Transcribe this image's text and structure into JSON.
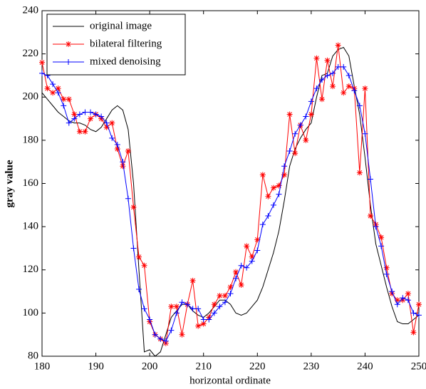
{
  "chart_data": {
    "type": "line",
    "xlabel": "horizontal ordinate",
    "ylabel": "gray value",
    "x": [
      180,
      181,
      182,
      183,
      184,
      185,
      186,
      187,
      188,
      189,
      190,
      191,
      192,
      193,
      194,
      195,
      196,
      197,
      198,
      199,
      200,
      201,
      202,
      203,
      204,
      205,
      206,
      207,
      208,
      209,
      210,
      211,
      212,
      213,
      214,
      215,
      216,
      217,
      218,
      219,
      220,
      221,
      222,
      223,
      224,
      225,
      226,
      227,
      228,
      229,
      230,
      231,
      232,
      233,
      234,
      235,
      236,
      237,
      238,
      239,
      240,
      241,
      242,
      243,
      244,
      245,
      246,
      247,
      248,
      249,
      250
    ],
    "series": [
      {
        "name": "original image",
        "color": "#000000",
        "marker": null,
        "values": [
          202,
          199,
          196,
          193,
          191,
          189,
          188,
          188,
          187,
          185,
          184,
          186,
          190,
          194,
          196,
          194,
          185,
          160,
          120,
          82,
          83,
          80,
          82,
          90,
          98,
          101,
          104,
          104,
          101,
          99,
          98,
          100,
          103,
          106,
          106,
          104,
          100,
          99,
          100,
          103,
          106,
          112,
          120,
          128,
          138,
          152,
          168,
          176,
          181,
          185,
          188,
          200,
          210,
          211,
          219,
          222,
          223,
          219,
          205,
          192,
          172,
          150,
          132,
          122,
          112,
          103,
          96,
          95,
          95,
          97,
          99
        ]
      },
      {
        "name": "bilateral filtering",
        "color": "#ff0000",
        "marker": "*",
        "values": [
          216,
          204,
          202,
          204,
          199,
          199,
          192,
          184,
          184,
          190,
          192,
          190,
          186,
          188,
          176,
          168,
          175,
          149,
          126,
          122,
          96,
          90,
          88,
          86,
          103,
          103,
          90,
          104,
          115,
          94,
          95,
          98,
          104,
          108,
          108,
          112,
          119,
          113,
          131,
          126,
          134,
          164,
          154,
          158,
          159,
          164,
          192,
          174,
          187,
          180,
          192,
          218,
          199,
          217,
          205,
          224,
          202,
          205,
          204,
          165,
          204,
          145,
          141,
          135,
          121,
          109,
          106,
          106,
          109,
          91,
          104
        ]
      },
      {
        "name": "mixed denoising",
        "color": "#0000ff",
        "marker": "+",
        "values": [
          211,
          210,
          206,
          202,
          196,
          188,
          190,
          192,
          193,
          193,
          192,
          191,
          188,
          181,
          178,
          170,
          153,
          130,
          111,
          102,
          97,
          90,
          88,
          87,
          92,
          100,
          105,
          104,
          102,
          102,
          97,
          97,
          100,
          103,
          105,
          109,
          116,
          122,
          121,
          124,
          129,
          141,
          145,
          150,
          155,
          168,
          175,
          183,
          187,
          191,
          198,
          204,
          208,
          210,
          211,
          214,
          214,
          210,
          203,
          196,
          183,
          162,
          140,
          131,
          118,
          110,
          104,
          107,
          106,
          100,
          99
        ]
      }
    ],
    "xlim": [
      180,
      250
    ],
    "ylim": [
      80,
      240
    ],
    "xticks": [
      180,
      190,
      200,
      210,
      220,
      230,
      240,
      250
    ],
    "yticks": [
      80,
      100,
      120,
      140,
      160,
      180,
      200,
      220,
      240
    ],
    "legend": "upper left",
    "grid": false
  }
}
